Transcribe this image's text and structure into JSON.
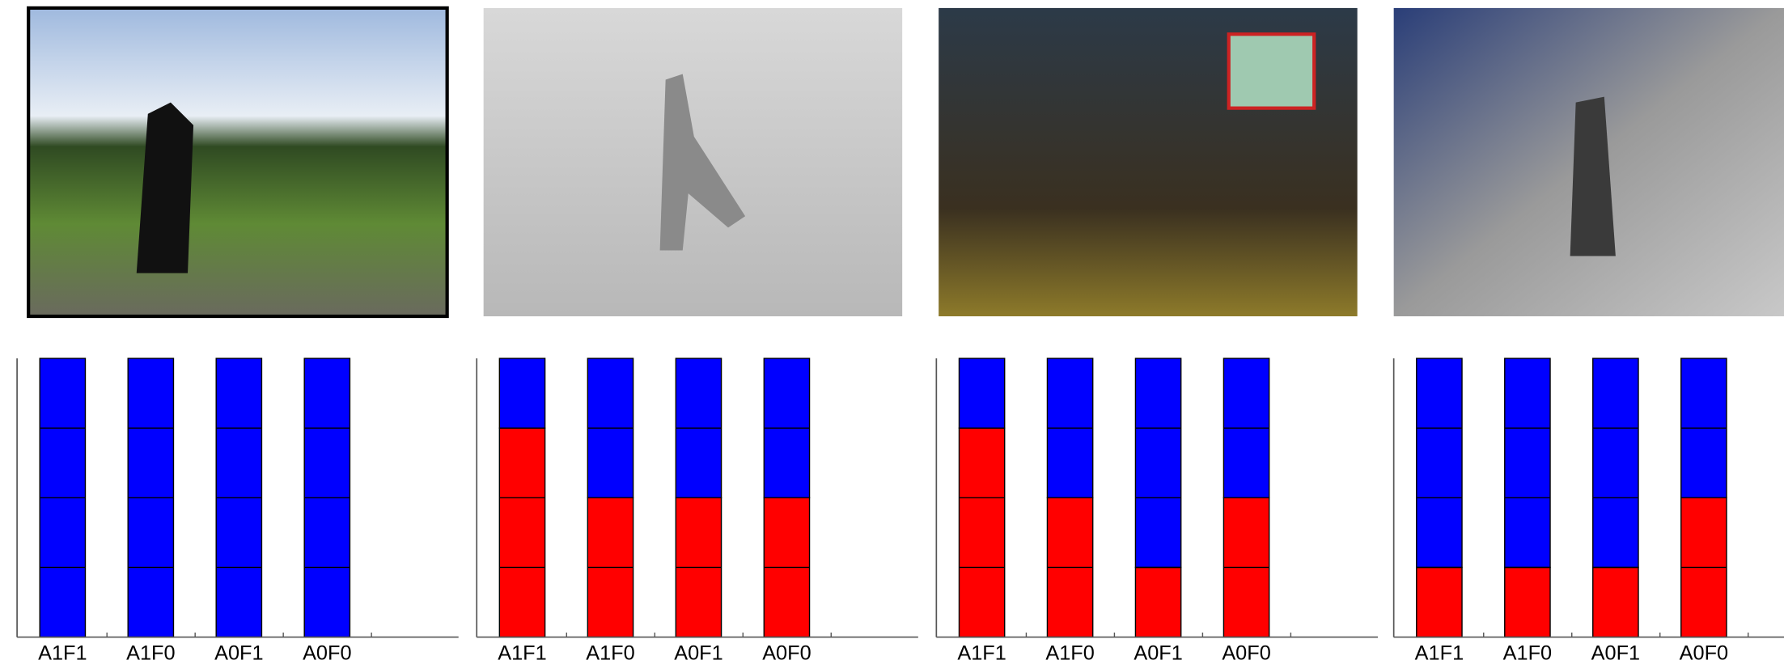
{
  "chart_data": [
    {
      "type": "bar",
      "stacked": true,
      "categories": [
        "A1F1",
        "A1F0",
        "A0F1",
        "A0F0"
      ],
      "ylim": [
        0,
        4
      ],
      "yticks": [
        0,
        1,
        2,
        3,
        4
      ],
      "series": [
        {
          "color": "#ff0000",
          "values": [
            0,
            0,
            0,
            0
          ]
        },
        {
          "color": "#0000ff",
          "values": [
            4,
            4,
            4,
            4
          ]
        }
      ]
    },
    {
      "type": "bar",
      "stacked": true,
      "categories": [
        "A1F1",
        "A1F0",
        "A0F1",
        "A0F0"
      ],
      "ylim": [
        0,
        4
      ],
      "yticks": [
        0,
        1,
        2,
        3,
        4
      ],
      "series": [
        {
          "color": "#ff0000",
          "values": [
            3,
            2,
            2,
            2
          ]
        },
        {
          "color": "#0000ff",
          "values": [
            1,
            2,
            2,
            2
          ]
        }
      ]
    },
    {
      "type": "bar",
      "stacked": true,
      "categories": [
        "A1F1",
        "A1F0",
        "A0F1",
        "A0F0"
      ],
      "ylim": [
        0,
        4
      ],
      "yticks": [
        0,
        1,
        2,
        3,
        4
      ],
      "series": [
        {
          "color": "#ff0000",
          "values": [
            3,
            2,
            1,
            2
          ]
        },
        {
          "color": "#0000ff",
          "values": [
            1,
            2,
            3,
            2
          ]
        }
      ]
    },
    {
      "type": "bar",
      "stacked": true,
      "categories": [
        "A1F1",
        "A1F0",
        "A0F1",
        "A0F0"
      ],
      "ylim": [
        0,
        4
      ],
      "yticks": [
        0,
        1,
        2,
        3,
        4
      ],
      "series": [
        {
          "color": "#ff0000",
          "values": [
            1,
            1,
            1,
            2
          ]
        },
        {
          "color": "#0000ff",
          "values": [
            3,
            3,
            3,
            2
          ]
        }
      ]
    }
  ]
}
